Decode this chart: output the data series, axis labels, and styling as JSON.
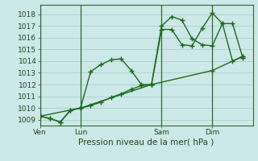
{
  "background_color": "#cde8e8",
  "grid_color": "#aacccc",
  "line_color": "#1a6b1a",
  "title": "Pression niveau de la mer( hPa )",
  "ylabel_values": [
    1009,
    1010,
    1011,
    1012,
    1013,
    1014,
    1015,
    1016,
    1017,
    1018
  ],
  "xtick_labels": [
    "Ven",
    "Lun",
    "Sam",
    "Dim"
  ],
  "xtick_positions": [
    0,
    4,
    12,
    17
  ],
  "xmin": 0,
  "xmax": 21,
  "ymin": 1008.5,
  "ymax": 1018.8,
  "series1_x": [
    0,
    1,
    2,
    3,
    4,
    5,
    6,
    7,
    8,
    9,
    10,
    11,
    12,
    13,
    14,
    15,
    16,
    17,
    18,
    19,
    20
  ],
  "series1_y": [
    1009.3,
    1009.1,
    1008.8,
    1009.8,
    1010.0,
    1013.1,
    1013.7,
    1014.1,
    1014.2,
    1013.2,
    1012.0,
    1012.0,
    1017.0,
    1017.8,
    1017.5,
    1015.9,
    1015.4,
    1015.3,
    1017.2,
    1017.2,
    1014.3
  ],
  "series2_x": [
    0,
    1,
    2,
    3,
    4,
    5,
    6,
    7,
    8,
    9,
    10,
    11,
    12,
    13,
    14,
    15,
    16,
    17,
    18,
    19,
    20
  ],
  "series2_y": [
    1009.3,
    1009.1,
    1008.8,
    1009.8,
    1010.0,
    1010.2,
    1010.5,
    1010.9,
    1011.2,
    1011.6,
    1011.9,
    1012.0,
    1016.7,
    1016.7,
    1015.4,
    1015.3,
    1016.8,
    1018.1,
    1017.2,
    1014.0,
    1014.4
  ],
  "series3_x": [
    0,
    4,
    11,
    17,
    20
  ],
  "series3_y": [
    1009.3,
    1010.0,
    1012.0,
    1013.2,
    1014.4
  ],
  "vline_positions": [
    0,
    4,
    12,
    17
  ]
}
